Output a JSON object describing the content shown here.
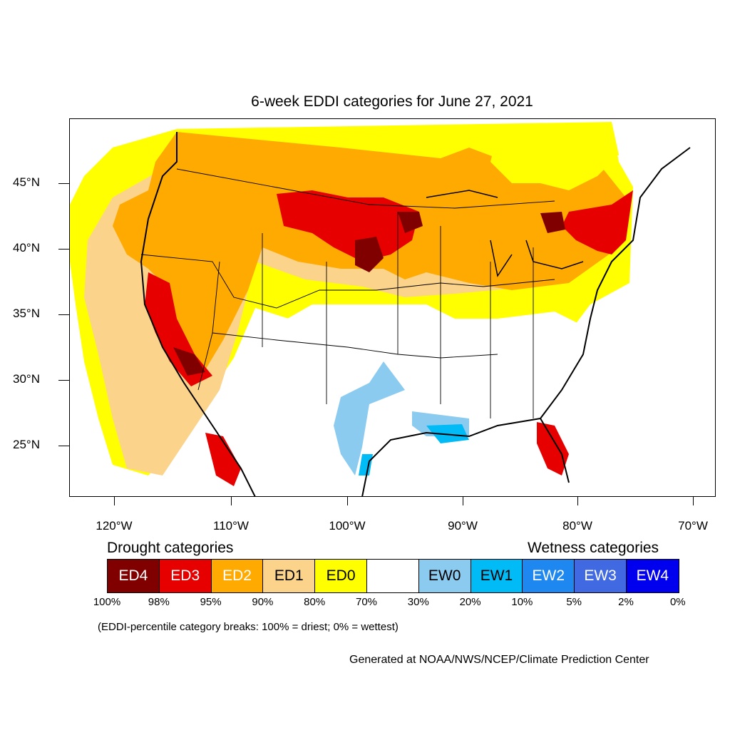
{
  "title": "6-week EDDI categories for June 27, 2021",
  "lat_labels": [
    "45°N",
    "40°N",
    "35°N",
    "30°N",
    "25°N"
  ],
  "lon_labels": [
    "120°W",
    "110°W",
    "100°W",
    "90°W",
    "80°W",
    "70°W"
  ],
  "legend": {
    "drought_heading": "Drought categories",
    "wetness_heading": "Wetness categories",
    "categories": [
      {
        "label": "ED4",
        "color": "#800000",
        "text_color": "#ffffff"
      },
      {
        "label": "ED3",
        "color": "#e60000",
        "text_color": "#ffffff"
      },
      {
        "label": "ED2",
        "color": "#ffaa00",
        "text_color": "#ffffff"
      },
      {
        "label": "ED1",
        "color": "#fcd38b",
        "text_color": "#000000"
      },
      {
        "label": "ED0",
        "color": "#ffff00",
        "text_color": "#000000"
      },
      {
        "label": "",
        "color": "#ffffff",
        "text_color": "#000000"
      },
      {
        "label": "EW0",
        "color": "#8ccbf0",
        "text_color": "#000000"
      },
      {
        "label": "EW1",
        "color": "#00bbf5",
        "text_color": "#000000"
      },
      {
        "label": "EW2",
        "color": "#1e88f0",
        "text_color": "#ffffff"
      },
      {
        "label": "EW3",
        "color": "#4169e1",
        "text_color": "#ffffff"
      },
      {
        "label": "EW4",
        "color": "#0000ee",
        "text_color": "#ffffff"
      }
    ],
    "percentiles": [
      "100%",
      "98%",
      "95%",
      "90%",
      "80%",
      "70%",
      "30%",
      "20%",
      "10%",
      "5%",
      "2%",
      "0%"
    ]
  },
  "note": "(EDDI-percentile category breaks: 100% = driest; 0% = wettest)",
  "credit": "Generated at NOAA/NWS/NCEP/Climate Prediction Center"
}
